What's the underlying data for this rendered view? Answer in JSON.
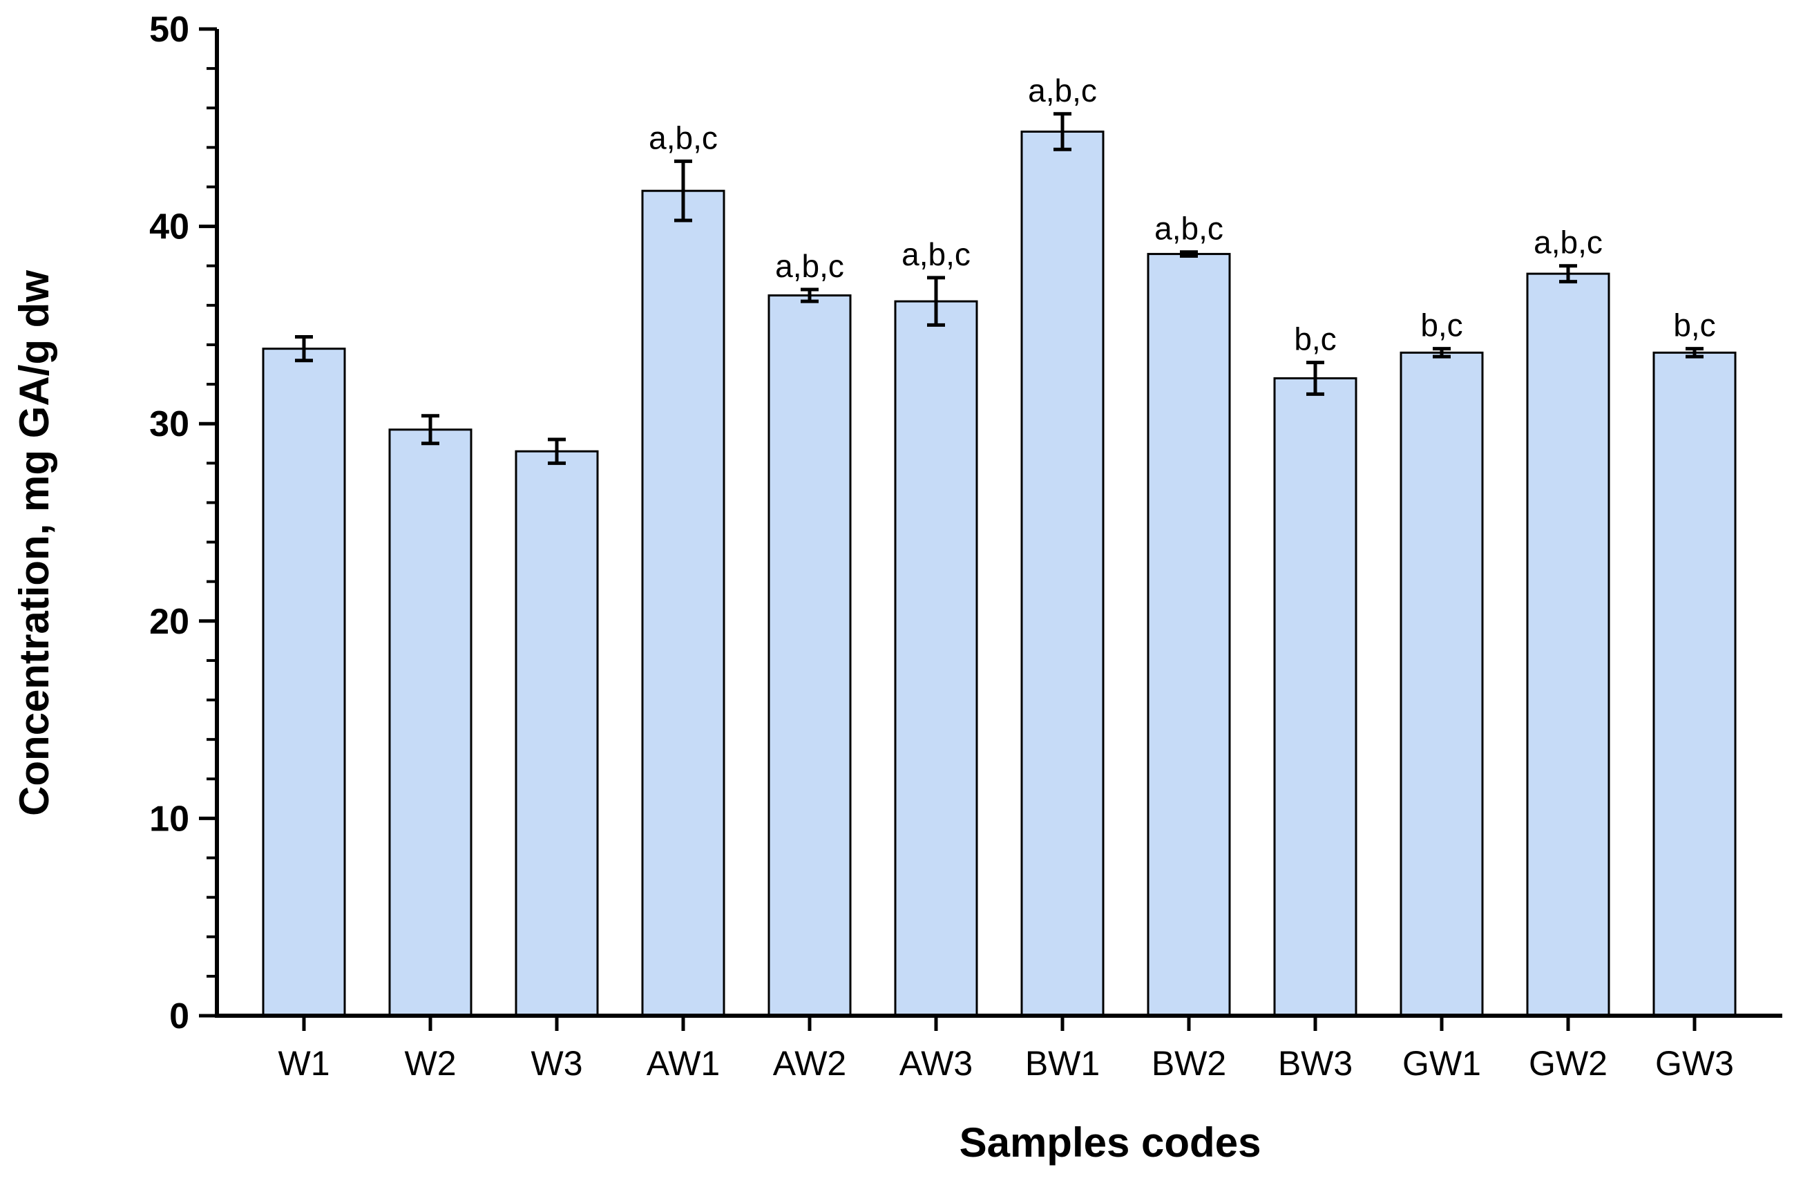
{
  "chart_data": {
    "type": "bar",
    "title": "",
    "xlabel": "Samples codes",
    "ylabel": "Concentration, mg GA/g dw",
    "ylim": [
      0,
      50
    ],
    "yticks": [
      0,
      10,
      20,
      30,
      40,
      50
    ],
    "y_minor_step": 2,
    "grid": false,
    "legend": "none",
    "bar_color": "#c6dbf7",
    "bar_edge_color": "#000000",
    "categories": [
      "W1",
      "W2",
      "W3",
      "AW1",
      "AW2",
      "AW3",
      "BW1",
      "BW2",
      "BW3",
      "GW1",
      "GW2",
      "GW3"
    ],
    "values": [
      33.8,
      29.7,
      28.6,
      41.8,
      36.5,
      36.2,
      44.8,
      38.6,
      32.3,
      33.6,
      37.6,
      33.6
    ],
    "errors": [
      0.6,
      0.7,
      0.6,
      1.5,
      0.3,
      1.2,
      0.9,
      0.1,
      0.8,
      0.2,
      0.4,
      0.2
    ],
    "annotations": [
      "",
      "",
      "",
      "a,b,c",
      "a,b,c",
      "a,b,c",
      "a,b,c",
      "a,b,c",
      "b,c",
      "b,c",
      "a,b,c",
      "b,c"
    ]
  }
}
